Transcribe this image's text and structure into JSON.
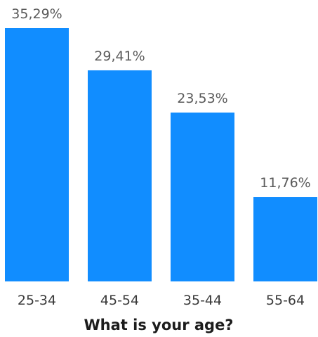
{
  "chart_data": {
    "type": "bar",
    "categories": [
      "25-34",
      "45-54",
      "35-44",
      "55-64"
    ],
    "values": [
      35.29,
      29.41,
      23.53,
      11.76
    ],
    "value_labels": [
      "35,29%",
      "29,41%",
      "23,53%",
      "11,76%"
    ],
    "title": "",
    "xlabel": "What is your age?",
    "ylabel": "",
    "ylim": [
      0,
      35.29
    ],
    "grid": false,
    "legend": "none",
    "bar_color": "#118dff"
  }
}
